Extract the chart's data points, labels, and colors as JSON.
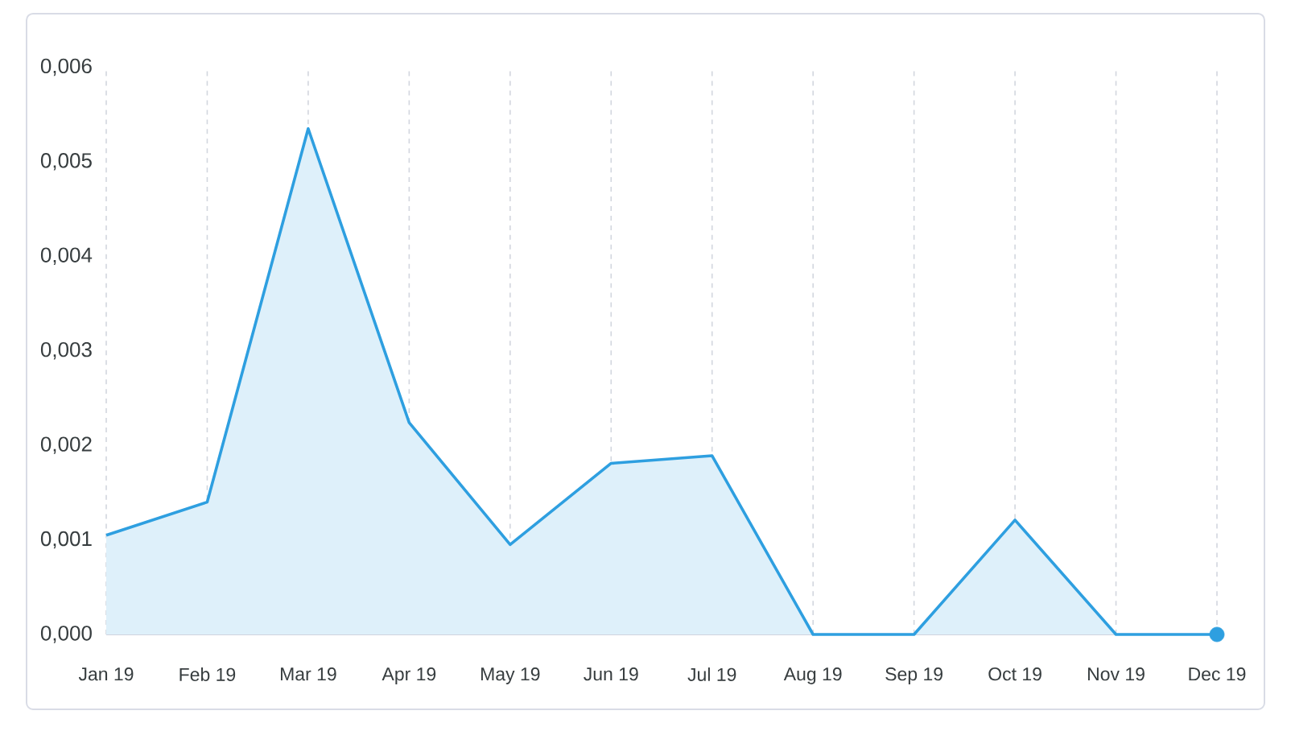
{
  "chart_data": {
    "type": "area",
    "categories": [
      "Jan 19",
      "Feb 19",
      "Mar 19",
      "Apr 19",
      "May 19",
      "Jun 19",
      "Jul 19",
      "Aug 19",
      "Sep 19",
      "Oct 19",
      "Nov 19",
      "Dec 19"
    ],
    "series": [
      {
        "color": "#2e9fe0",
        "values": [
          0.00105,
          0.0014,
          0.00535,
          0.00224,
          0.00095,
          0.00181,
          0.00189,
          0,
          0,
          0.00121,
          0,
          0
        ]
      },
      {
        "type": "scatter",
        "color": "#2e9fe0",
        "marker": "circle",
        "values": [
          null,
          null,
          null,
          null,
          null,
          null,
          null,
          null,
          null,
          null,
          null,
          0
        ]
      }
    ],
    "ylim": [
      0,
      0.006
    ],
    "yticks": [
      {
        "value": 0,
        "label": "0,000"
      },
      {
        "value": 0.001,
        "label": "0,001"
      },
      {
        "value": 0.002,
        "label": "0,002"
      },
      {
        "value": 0.003,
        "label": "0,003"
      },
      {
        "value": 0.004,
        "label": "0,004"
      },
      {
        "value": 0.005,
        "label": "0,005"
      },
      {
        "value": 0.006,
        "label": "0,006"
      }
    ],
    "grid": "x",
    "marker": "none",
    "line_style": "solid"
  }
}
